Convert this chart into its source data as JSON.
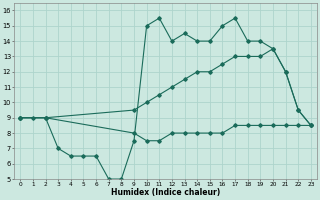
{
  "xlabel": "Humidex (Indice chaleur)",
  "xlim": [
    -0.5,
    23.5
  ],
  "ylim": [
    5,
    16.5
  ],
  "xticks": [
    0,
    1,
    2,
    3,
    4,
    5,
    6,
    7,
    8,
    9,
    10,
    11,
    12,
    13,
    14,
    15,
    16,
    17,
    18,
    19,
    20,
    21,
    22,
    23
  ],
  "yticks": [
    5,
    6,
    7,
    8,
    9,
    10,
    11,
    12,
    13,
    14,
    15,
    16
  ],
  "bg_color": "#cce8e0",
  "grid_color": "#aed4cc",
  "line_color": "#1a6b5a",
  "series": [
    {
      "x": [
        0,
        1,
        2,
        3,
        4,
        5,
        6,
        7,
        8,
        9,
        10,
        11,
        12,
        13,
        14,
        15,
        16,
        17,
        18,
        19,
        20,
        21,
        22,
        23
      ],
      "y": [
        9,
        9,
        9,
        7,
        6.5,
        6.5,
        6.5,
        5,
        5,
        7.5,
        15,
        15.5,
        14,
        14.5,
        14,
        14,
        15,
        15.5,
        14,
        14,
        13.5,
        12,
        9.5,
        8.5
      ]
    },
    {
      "x": [
        0,
        2,
        9,
        10,
        11,
        12,
        13,
        14,
        15,
        16,
        17,
        18,
        19,
        20,
        21,
        22,
        23
      ],
      "y": [
        9,
        9,
        9.5,
        10,
        10.5,
        11,
        11.5,
        12,
        12,
        12.5,
        13,
        13,
        13,
        13.5,
        12,
        9.5,
        8.5
      ]
    },
    {
      "x": [
        0,
        2,
        9,
        10,
        11,
        12,
        13,
        14,
        15,
        16,
        17,
        18,
        19,
        20,
        21,
        22,
        23
      ],
      "y": [
        9,
        9,
        8,
        7.5,
        7.5,
        8,
        8,
        8,
        8,
        8,
        8.5,
        8.5,
        8.5,
        8.5,
        8.5,
        8.5,
        8.5
      ]
    }
  ]
}
